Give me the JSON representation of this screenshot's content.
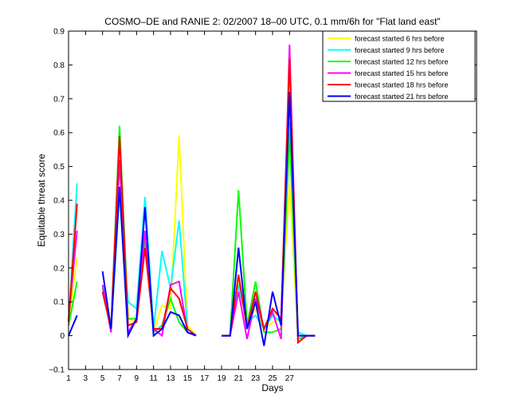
{
  "chart_data": {
    "type": "line",
    "title": "COSMO–DE and RANIE 2: 02/2007 18–00 UTC, 0.1 mm/6h for \"Flat land east\"",
    "xlabel": "Days",
    "ylabel": "Equitable threat score",
    "xlim": [
      1,
      49
    ],
    "ylim": [
      -0.1,
      0.9
    ],
    "xticks": [
      1,
      3,
      5,
      7,
      9,
      11,
      13,
      15,
      17,
      19,
      21,
      23,
      25,
      27
    ],
    "yticks": [
      -0.1,
      0,
      0.1,
      0.2,
      0.3,
      0.4,
      0.5,
      0.6,
      0.7,
      0.8,
      0.9
    ],
    "ytick_labels": [
      "−0.1",
      "0",
      "0.1",
      "0.2",
      "0.3",
      "0.4",
      "0.5",
      "0.6",
      "0.7",
      "0.8",
      "0.9"
    ],
    "legend_position": "top-right",
    "grid": false,
    "series": [
      {
        "name": "forecast started 6 hrs before",
        "color": "#ffff00",
        "values": [
          [
            1,
            0.04
          ],
          [
            2,
            0.23
          ],
          [
            null,
            null
          ],
          [
            5,
            0.14
          ],
          [
            6,
            0.01
          ],
          [
            7,
            0.43
          ],
          [
            8,
            0.05
          ],
          [
            9,
            0.04
          ],
          [
            10,
            0.3
          ],
          [
            11,
            0.01
          ],
          [
            12,
            0.09
          ],
          [
            13,
            0.08
          ],
          [
            14,
            0.59
          ],
          [
            15,
            0.03
          ],
          [
            16,
            0.0
          ],
          [
            null,
            null
          ],
          [
            19,
            0.0
          ],
          [
            20,
            0.0
          ],
          [
            21,
            0.16
          ],
          [
            22,
            0.04
          ],
          [
            23,
            0.08
          ],
          [
            24,
            0.02
          ],
          [
            25,
            0.04
          ],
          [
            26,
            0.05
          ],
          [
            27,
            0.45
          ],
          [
            28,
            -0.01
          ],
          [
            29,
            0.0
          ],
          [
            30,
            0.0
          ]
        ]
      },
      {
        "name": "forecast started 9 hrs before",
        "color": "#00ffff",
        "values": [
          [
            1,
            0.04
          ],
          [
            2,
            0.45
          ],
          [
            null,
            null
          ],
          [
            5,
            0.14
          ],
          [
            6,
            0.02
          ],
          [
            7,
            0.42
          ],
          [
            8,
            0.1
          ],
          [
            9,
            0.08
          ],
          [
            10,
            0.41
          ],
          [
            11,
            0.02
          ],
          [
            12,
            0.25
          ],
          [
            13,
            0.14
          ],
          [
            14,
            0.34
          ],
          [
            15,
            0.02
          ],
          [
            16,
            0.0
          ],
          [
            null,
            null
          ],
          [
            19,
            0.0
          ],
          [
            20,
            0.0
          ],
          [
            21,
            0.15
          ],
          [
            22,
            0.04
          ],
          [
            23,
            0.06
          ],
          [
            24,
            0.02
          ],
          [
            25,
            0.06
          ],
          [
            26,
            0.04
          ],
          [
            27,
            0.63
          ],
          [
            28,
            0.01
          ],
          [
            29,
            0.0
          ],
          [
            30,
            0.0
          ]
        ]
      },
      {
        "name": "forecast started 12 hrs before",
        "color": "#00ff00",
        "values": [
          [
            1,
            0.03
          ],
          [
            2,
            0.16
          ],
          [
            null,
            null
          ],
          [
            5,
            0.13
          ],
          [
            6,
            0.02
          ],
          [
            7,
            0.62
          ],
          [
            8,
            0.05
          ],
          [
            9,
            0.05
          ],
          [
            10,
            0.29
          ],
          [
            11,
            0.01
          ],
          [
            12,
            0.03
          ],
          [
            13,
            0.11
          ],
          [
            14,
            0.04
          ],
          [
            15,
            0.01
          ],
          [
            16,
            0.0
          ],
          [
            null,
            null
          ],
          [
            19,
            0.0
          ],
          [
            20,
            0.0
          ],
          [
            21,
            0.43
          ],
          [
            22,
            0.03
          ],
          [
            23,
            0.16
          ],
          [
            24,
            0.01
          ],
          [
            25,
            0.01
          ],
          [
            26,
            0.02
          ],
          [
            27,
            0.6
          ],
          [
            28,
            -0.01
          ],
          [
            29,
            0.0
          ],
          [
            30,
            0.0
          ]
        ]
      },
      {
        "name": "forecast started 15 hrs before",
        "color": "#ff00ff",
        "values": [
          [
            1,
            0.05
          ],
          [
            2,
            0.31
          ],
          [
            null,
            null
          ],
          [
            5,
            0.15
          ],
          [
            6,
            0.01
          ],
          [
            7,
            0.52
          ],
          [
            8,
            0.01
          ],
          [
            9,
            0.05
          ],
          [
            10,
            0.31
          ],
          [
            11,
            0.02
          ],
          [
            12,
            0.0
          ],
          [
            13,
            0.15
          ],
          [
            14,
            0.16
          ],
          [
            15,
            0.01
          ],
          [
            16,
            0.0
          ],
          [
            null,
            null
          ],
          [
            19,
            0.0
          ],
          [
            20,
            0.0
          ],
          [
            21,
            0.13
          ],
          [
            22,
            -0.01
          ],
          [
            23,
            0.11
          ],
          [
            24,
            0.02
          ],
          [
            25,
            0.07
          ],
          [
            26,
            -0.01
          ],
          [
            27,
            0.86
          ],
          [
            28,
            -0.02
          ],
          [
            29,
            0.0
          ],
          [
            30,
            0.0
          ]
        ]
      },
      {
        "name": "forecast started 18 hrs before",
        "color": "#ff0000",
        "values": [
          [
            1,
            0.04
          ],
          [
            2,
            0.39
          ],
          [
            null,
            null
          ],
          [
            5,
            0.13
          ],
          [
            6,
            0.02
          ],
          [
            7,
            0.59
          ],
          [
            8,
            0.03
          ],
          [
            9,
            0.04
          ],
          [
            10,
            0.26
          ],
          [
            11,
            0.02
          ],
          [
            12,
            0.02
          ],
          [
            13,
            0.14
          ],
          [
            14,
            0.11
          ],
          [
            15,
            0.02
          ],
          [
            16,
            0.0
          ],
          [
            null,
            null
          ],
          [
            19,
            0.0
          ],
          [
            20,
            0.0
          ],
          [
            21,
            0.18
          ],
          [
            22,
            0.02
          ],
          [
            23,
            0.13
          ],
          [
            24,
            0.02
          ],
          [
            25,
            0.08
          ],
          [
            26,
            0.05
          ],
          [
            27,
            0.82
          ],
          [
            28,
            -0.02
          ],
          [
            29,
            0.0
          ],
          [
            30,
            0.0
          ]
        ]
      },
      {
        "name": "forecast started 21 hrs before",
        "color": "#0000ff",
        "values": [
          [
            1,
            0.0
          ],
          [
            2,
            0.06
          ],
          [
            null,
            null
          ],
          [
            5,
            0.19
          ],
          [
            6,
            0.02
          ],
          [
            7,
            0.44
          ],
          [
            8,
            0.0
          ],
          [
            9,
            0.05
          ],
          [
            10,
            0.38
          ],
          [
            11,
            0.0
          ],
          [
            12,
            0.02
          ],
          [
            13,
            0.07
          ],
          [
            14,
            0.06
          ],
          [
            15,
            0.01
          ],
          [
            16,
            0.0
          ],
          [
            null,
            null
          ],
          [
            19,
            0.0
          ],
          [
            20,
            0.0
          ],
          [
            21,
            0.26
          ],
          [
            22,
            0.02
          ],
          [
            23,
            0.1
          ],
          [
            24,
            -0.03
          ],
          [
            25,
            0.13
          ],
          [
            26,
            0.03
          ],
          [
            27,
            0.72
          ],
          [
            28,
            0.0
          ],
          [
            29,
            0.0
          ],
          [
            30,
            0.0
          ]
        ]
      }
    ]
  }
}
